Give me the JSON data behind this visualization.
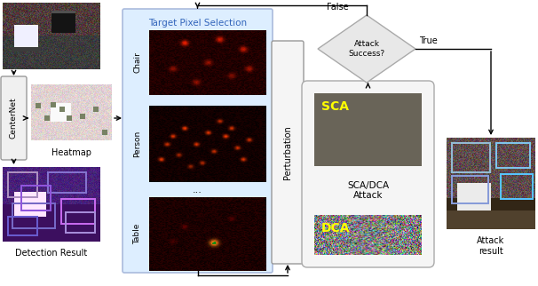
{
  "bg_color": "#ffffff",
  "blue_bg": "#ddeeff",
  "blue_edge": "#aabbdd",
  "centernet_bg": "#f0f0f0",
  "centernet_edge": "#999999",
  "scadca_bg": "#f5f5f5",
  "scadca_edge": "#aaaaaa",
  "diamond_bg": "#e8e8e8",
  "diamond_edge": "#aaaaaa",
  "perturb_bg": "#f5f5f5",
  "perturb_edge": "#999999",
  "sca_gray": [
    105,
    100,
    88
  ],
  "labels": {
    "centernet": "CenterNet",
    "heatmap": "Heatmap",
    "detection": "Detection Result",
    "target_pixel": "Target Pixel Selection",
    "chair": "Chair",
    "person": "Person",
    "table": "Table",
    "perturbation": "Perturbation",
    "sca": "SCA",
    "dca": "DCA",
    "sca_dca_attack": "SCA/DCA\nAttack",
    "attack_success": "Attack\nSuccess?",
    "true_label": "True",
    "false_label": "False",
    "attack_result": "Attack\nresult",
    "dots": "..."
  },
  "layout": {
    "fig_w": 6.06,
    "fig_h": 3.22,
    "dpi": 100
  }
}
